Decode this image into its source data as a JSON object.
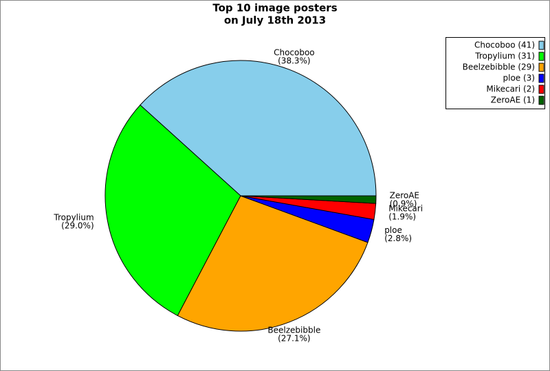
{
  "chart_data": {
    "type": "pie",
    "title": [
      "Top 10 image posters",
      "on July 18th 2013"
    ],
    "categories": [
      "Chocoboo",
      "Tropylium",
      "Beelzebibble",
      "ploe",
      "Mikecari",
      "ZeroAE"
    ],
    "values": [
      38.3,
      29.0,
      27.1,
      2.8,
      1.9,
      0.9
    ],
    "value_labels": [
      "(38.3%)",
      "(29.0%)",
      "(27.1%)",
      "(2.8%)",
      "(1.9%)",
      "(0.9%)"
    ],
    "colors": [
      "#87ceeb",
      "#00ff00",
      "#ffa500",
      "#0000ff",
      "#ff0000",
      "#006400"
    ],
    "legend_labels": [
      "Chocoboo (41)",
      "Tropylium (31)",
      "Beelzebibble (29)",
      "ploe (3)",
      "Mikecari (2)",
      "ZeroAE (1)"
    ],
    "legend": "upper right"
  }
}
